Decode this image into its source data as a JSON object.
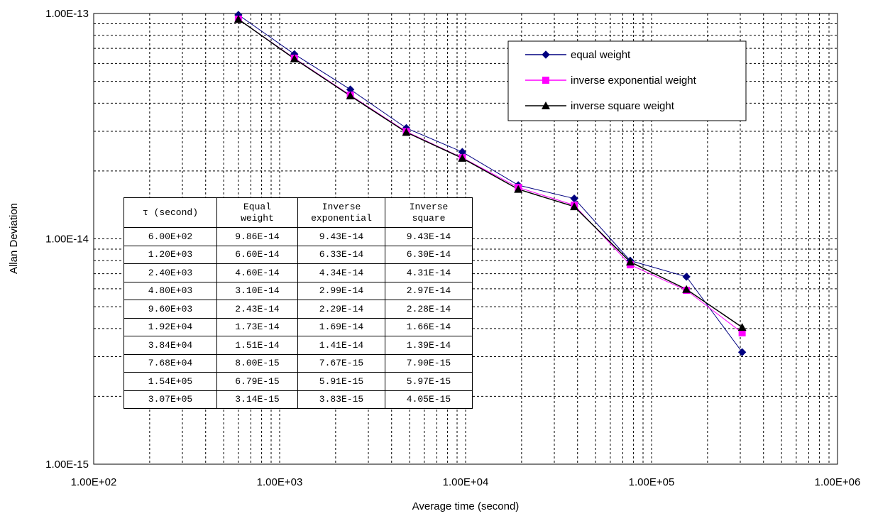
{
  "chart_data": {
    "type": "line",
    "x_scale": "log",
    "y_scale": "log",
    "xlabel": "Average time (second)",
    "ylabel": "Allan Deviation",
    "xlim": [
      100,
      1000000
    ],
    "ylim": [
      1e-15,
      1e-13
    ],
    "x_tick_labels": [
      "1.00E+02",
      "1.00E+03",
      "1.00E+04",
      "1.00E+05",
      "1.00E+06"
    ],
    "y_tick_labels": [
      "1.00E-15",
      "1.00E-14",
      "1.00E-13"
    ],
    "grid": "dashed major and minor",
    "legend_position": "top-right",
    "x": [
      600,
      1200,
      2400,
      4800,
      9600,
      19200,
      38400,
      76800,
      154000,
      307000
    ],
    "series": [
      {
        "name": "equal weight",
        "color": "#000080",
        "marker": "diamond",
        "values": [
          9.86e-14,
          6.6e-14,
          4.6e-14,
          3.1e-14,
          2.43e-14,
          1.73e-14,
          1.51e-14,
          8e-15,
          6.79e-15,
          3.14e-15
        ]
      },
      {
        "name": "inverse exponential weight",
        "color": "#ff00ff",
        "marker": "square",
        "values": [
          9.43e-14,
          6.33e-14,
          4.34e-14,
          2.99e-14,
          2.29e-14,
          1.69e-14,
          1.41e-14,
          7.67e-15,
          5.91e-15,
          3.83e-15
        ]
      },
      {
        "name": "inverse square weight",
        "color": "#000000",
        "marker": "triangle",
        "values": [
          9.43e-14,
          6.3e-14,
          4.31e-14,
          2.97e-14,
          2.28e-14,
          1.66e-14,
          1.39e-14,
          7.9e-15,
          5.97e-15,
          4.05e-15
        ]
      }
    ]
  },
  "table": {
    "headers": [
      [
        "τ (second)"
      ],
      [
        "Equal",
        "weight"
      ],
      [
        "Inverse",
        "exponential"
      ],
      [
        "Inverse",
        "square"
      ]
    ],
    "rows": [
      [
        "6.00E+02",
        "9.86E-14",
        "9.43E-14",
        "9.43E-14"
      ],
      [
        "1.20E+03",
        "6.60E-14",
        "6.33E-14",
        "6.30E-14"
      ],
      [
        "2.40E+03",
        "4.60E-14",
        "4.34E-14",
        "4.31E-14"
      ],
      [
        "4.80E+03",
        "3.10E-14",
        "2.99E-14",
        "2.97E-14"
      ],
      [
        "9.60E+03",
        "2.43E-14",
        "2.29E-14",
        "2.28E-14"
      ],
      [
        "1.92E+04",
        "1.73E-14",
        "1.69E-14",
        "1.66E-14"
      ],
      [
        "3.84E+04",
        "1.51E-14",
        "1.41E-14",
        "1.39E-14"
      ],
      [
        "7.68E+04",
        "8.00E-15",
        "7.67E-15",
        "7.90E-15"
      ],
      [
        "1.54E+05",
        "6.79E-15",
        "5.91E-15",
        "5.97E-15"
      ],
      [
        "3.07E+05",
        "3.14E-15",
        "3.83E-15",
        "4.05E-15"
      ]
    ]
  }
}
